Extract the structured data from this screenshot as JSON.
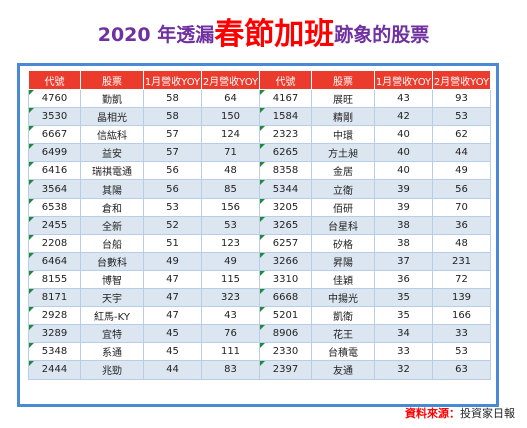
{
  "title": {
    "prefix": "2020 年透漏",
    "emphasis": "春節加班",
    "suffix": "跡象的股票"
  },
  "headers": [
    "代號",
    "股票",
    "1月營收YOY",
    "2月營收YOY",
    "代號",
    "股票",
    "1月營收YOY",
    "2月營收YOY"
  ],
  "rows": [
    [
      "4760",
      "勤凱",
      "58",
      "64",
      "4167",
      "展旺",
      "43",
      "93"
    ],
    [
      "3530",
      "晶相光",
      "58",
      "150",
      "1584",
      "精剛",
      "42",
      "53"
    ],
    [
      "6667",
      "信紘科",
      "57",
      "124",
      "2323",
      "中環",
      "40",
      "62"
    ],
    [
      "6499",
      "益安",
      "57",
      "71",
      "6265",
      "方土昶",
      "40",
      "44"
    ],
    [
      "6416",
      "瑞祺電通",
      "56",
      "48",
      "8358",
      "金居",
      "40",
      "49"
    ],
    [
      "3564",
      "其陽",
      "56",
      "85",
      "5344",
      "立衛",
      "39",
      "56"
    ],
    [
      "6538",
      "倉和",
      "53",
      "156",
      "3205",
      "佰研",
      "39",
      "70"
    ],
    [
      "2455",
      "全新",
      "52",
      "53",
      "3265",
      "台星科",
      "38",
      "36"
    ],
    [
      "2208",
      "台船",
      "51",
      "123",
      "6257",
      "矽格",
      "38",
      "48"
    ],
    [
      "6464",
      "台數科",
      "49",
      "49",
      "3266",
      "昇陽",
      "37",
      "231"
    ],
    [
      "8155",
      "博智",
      "47",
      "115",
      "3310",
      "佳穎",
      "36",
      "72"
    ],
    [
      "8171",
      "天宇",
      "47",
      "323",
      "6668",
      "中揚光",
      "35",
      "139"
    ],
    [
      "2928",
      "紅馬-KY",
      "47",
      "43",
      "5201",
      "凱衛",
      "35",
      "166"
    ],
    [
      "3289",
      "宜特",
      "45",
      "76",
      "8906",
      "花王",
      "34",
      "33"
    ],
    [
      "5348",
      "系通",
      "45",
      "111",
      "2330",
      "台積電",
      "33",
      "53"
    ],
    [
      "2444",
      "兆勁",
      "44",
      "83",
      "2397",
      "友通",
      "32",
      "63"
    ]
  ],
  "source": {
    "label": "資料來源：",
    "name": "投資家日報"
  },
  "colors": {
    "header_bg": "#eb3b2c",
    "alt_row": "#dce6f1",
    "frame": "#4a89d4",
    "title": "#7030a0",
    "emphasis": "#ff0000"
  }
}
